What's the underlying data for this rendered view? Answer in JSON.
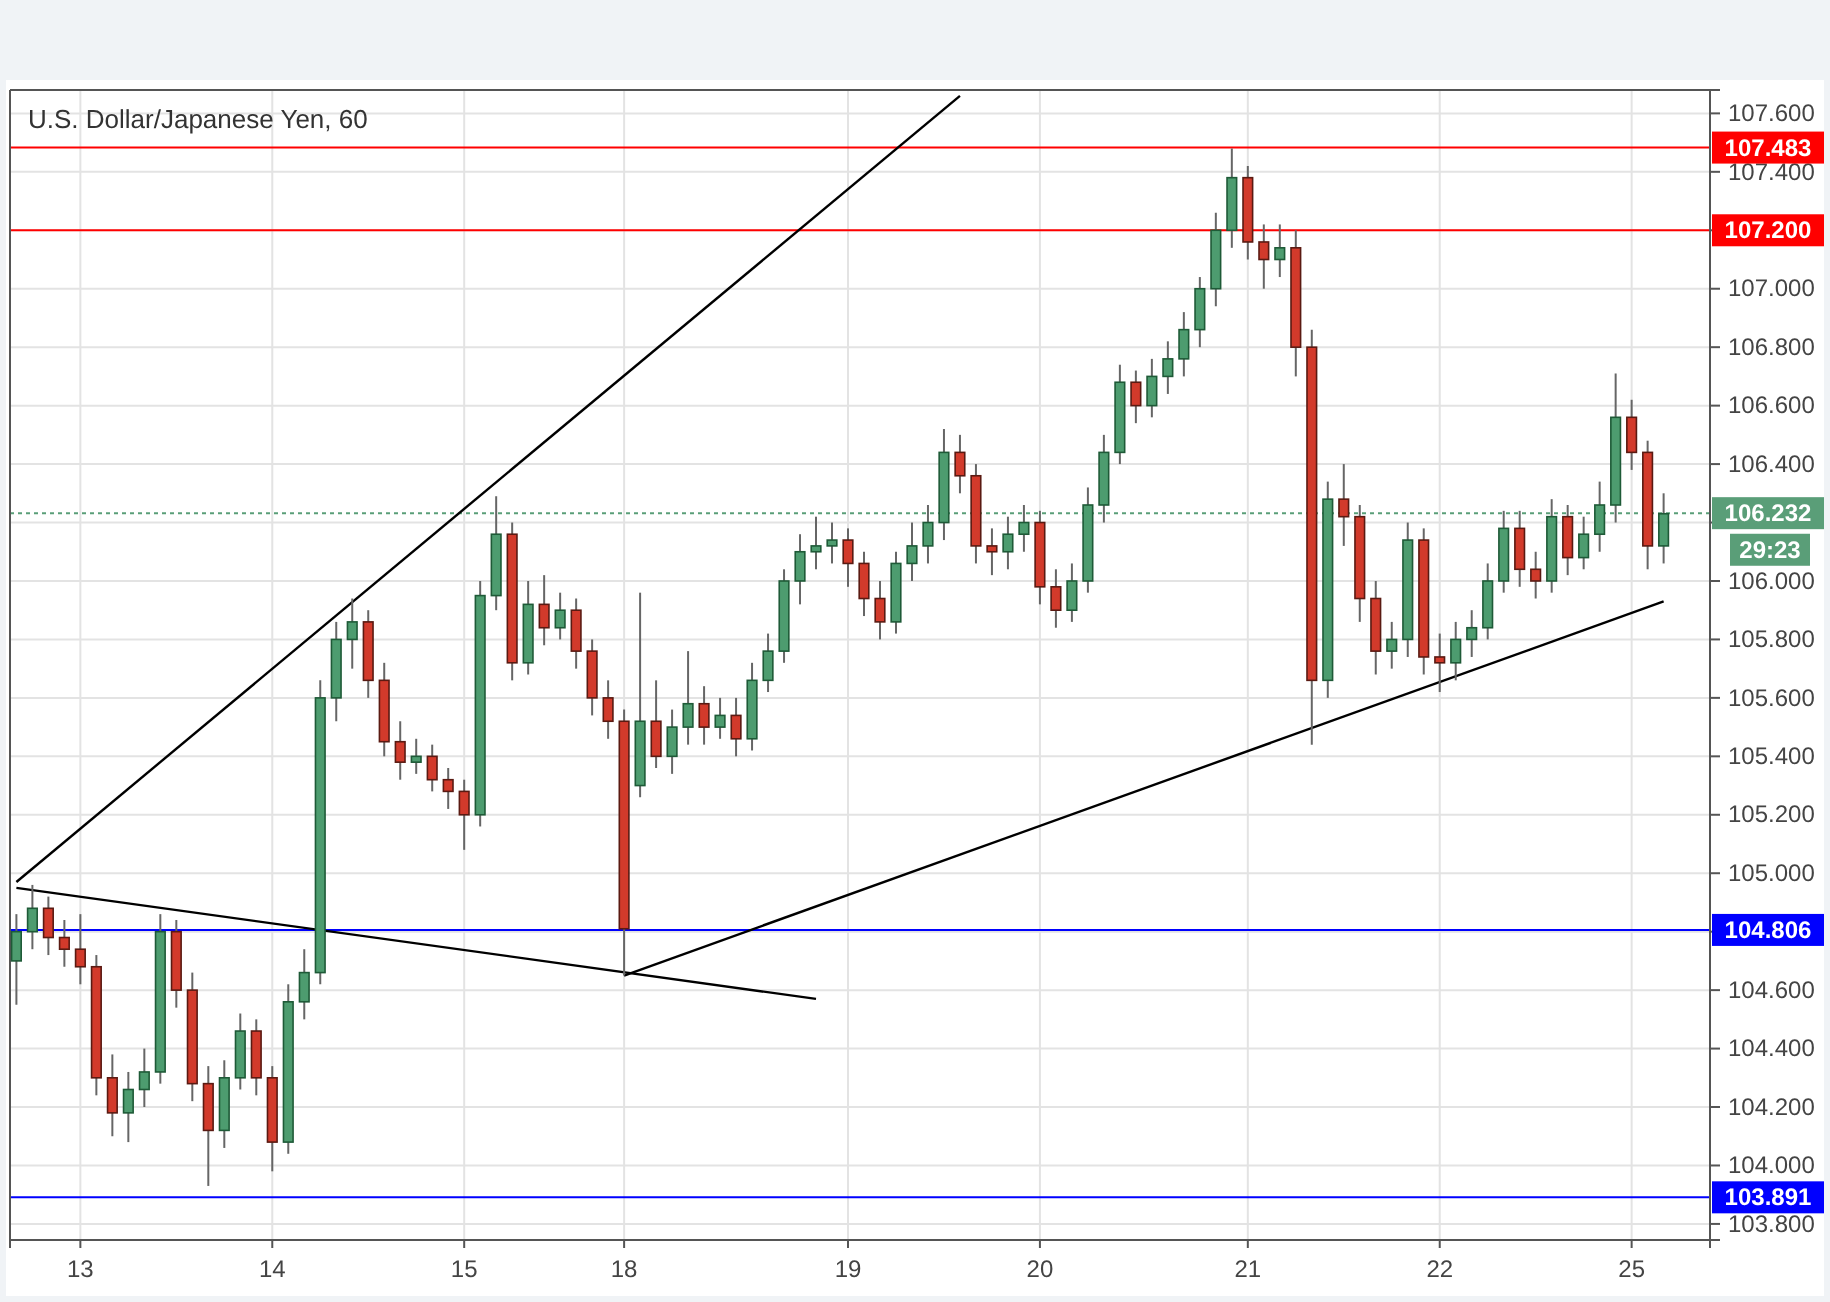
{
  "chart_data": {
    "type": "candlestick",
    "title": "U.S. Dollar/Japanese Yen, 60",
    "categories": [
      null,
      null,
      null,
      null,
      "13",
      null,
      null,
      null,
      null,
      null,
      null,
      null,
      null,
      null,
      null,
      null,
      "14",
      null,
      null,
      null,
      null,
      null,
      null,
      null,
      null,
      null,
      null,
      null,
      "15",
      null,
      null,
      null,
      null,
      null,
      null,
      null,
      null,
      null,
      "18",
      null,
      null,
      null,
      null,
      null,
      null,
      null,
      null,
      null,
      null,
      null,
      null,
      null,
      "19",
      null,
      null,
      null,
      null,
      null,
      null,
      null,
      null,
      null,
      null,
      null,
      "20",
      null,
      null,
      null,
      null,
      null,
      null,
      null,
      null,
      null,
      null,
      null,
      null,
      "21",
      null,
      null,
      null,
      null,
      null,
      null,
      null,
      null,
      null,
      null,
      null,
      "22",
      null,
      null,
      null,
      null,
      null,
      null,
      null,
      null,
      null,
      null,
      null,
      "25",
      null,
      null
    ],
    "ohlc": [
      [
        104.7,
        104.86,
        104.55,
        104.8
      ],
      [
        104.8,
        104.96,
        104.74,
        104.88
      ],
      [
        104.88,
        104.92,
        104.72,
        104.78
      ],
      [
        104.78,
        104.84,
        104.68,
        104.74
      ],
      [
        104.74,
        104.86,
        104.62,
        104.68
      ],
      [
        104.68,
        104.72,
        104.24,
        104.3
      ],
      [
        104.3,
        104.38,
        104.1,
        104.18
      ],
      [
        104.18,
        104.32,
        104.08,
        104.26
      ],
      [
        104.26,
        104.4,
        104.2,
        104.32
      ],
      [
        104.32,
        104.86,
        104.28,
        104.8
      ],
      [
        104.8,
        104.84,
        104.54,
        104.6
      ],
      [
        104.6,
        104.66,
        104.22,
        104.28
      ],
      [
        104.28,
        104.34,
        103.93,
        104.12
      ],
      [
        104.12,
        104.36,
        104.06,
        104.3
      ],
      [
        104.3,
        104.52,
        104.26,
        104.46
      ],
      [
        104.46,
        104.5,
        104.24,
        104.3
      ],
      [
        104.3,
        104.34,
        103.98,
        104.08
      ],
      [
        104.08,
        104.62,
        104.04,
        104.56
      ],
      [
        104.56,
        104.74,
        104.5,
        104.66
      ],
      [
        104.66,
        105.66,
        104.62,
        105.6
      ],
      [
        105.6,
        105.86,
        105.52,
        105.8
      ],
      [
        105.8,
        105.94,
        105.7,
        105.86
      ],
      [
        105.86,
        105.9,
        105.6,
        105.66
      ],
      [
        105.66,
        105.72,
        105.4,
        105.45
      ],
      [
        105.45,
        105.52,
        105.32,
        105.38
      ],
      [
        105.38,
        105.46,
        105.34,
        105.4
      ],
      [
        105.4,
        105.44,
        105.28,
        105.32
      ],
      [
        105.32,
        105.36,
        105.22,
        105.28
      ],
      [
        105.28,
        105.32,
        105.08,
        105.2
      ],
      [
        105.2,
        106.0,
        105.16,
        105.95
      ],
      [
        105.95,
        106.29,
        105.9,
        106.16
      ],
      [
        106.16,
        106.2,
        105.66,
        105.72
      ],
      [
        105.72,
        106.0,
        105.68,
        105.92
      ],
      [
        105.92,
        106.02,
        105.78,
        105.84
      ],
      [
        105.84,
        105.96,
        105.8,
        105.9
      ],
      [
        105.9,
        105.94,
        105.7,
        105.76
      ],
      [
        105.76,
        105.8,
        105.54,
        105.6
      ],
      [
        105.6,
        105.66,
        105.46,
        105.52
      ],
      [
        105.52,
        105.56,
        104.65,
        104.81
      ],
      [
        105.3,
        105.96,
        105.26,
        105.52
      ],
      [
        105.52,
        105.66,
        105.36,
        105.4
      ],
      [
        105.4,
        105.56,
        105.34,
        105.5
      ],
      [
        105.5,
        105.76,
        105.44,
        105.58
      ],
      [
        105.58,
        105.64,
        105.44,
        105.5
      ],
      [
        105.5,
        105.6,
        105.46,
        105.54
      ],
      [
        105.54,
        105.6,
        105.4,
        105.46
      ],
      [
        105.46,
        105.72,
        105.42,
        105.66
      ],
      [
        105.66,
        105.82,
        105.62,
        105.76
      ],
      [
        105.76,
        106.04,
        105.72,
        106.0
      ],
      [
        106.0,
        106.16,
        105.92,
        106.1
      ],
      [
        106.1,
        106.22,
        106.04,
        106.12
      ],
      [
        106.12,
        106.2,
        106.06,
        106.14
      ],
      [
        106.14,
        106.18,
        105.98,
        106.06
      ],
      [
        106.06,
        106.1,
        105.88,
        105.94
      ],
      [
        105.94,
        106.0,
        105.8,
        105.86
      ],
      [
        105.86,
        106.1,
        105.82,
        106.06
      ],
      [
        106.06,
        106.2,
        106.0,
        106.12
      ],
      [
        106.12,
        106.26,
        106.06,
        106.2
      ],
      [
        106.2,
        106.52,
        106.14,
        106.44
      ],
      [
        106.44,
        106.5,
        106.3,
        106.36
      ],
      [
        106.36,
        106.4,
        106.06,
        106.12
      ],
      [
        106.12,
        106.18,
        106.02,
        106.1
      ],
      [
        106.1,
        106.22,
        106.04,
        106.16
      ],
      [
        106.16,
        106.26,
        106.1,
        106.2
      ],
      [
        106.2,
        106.24,
        105.92,
        105.98
      ],
      [
        105.98,
        106.04,
        105.84,
        105.9
      ],
      [
        105.9,
        106.06,
        105.86,
        106.0
      ],
      [
        106.0,
        106.32,
        105.96,
        106.26
      ],
      [
        106.26,
        106.5,
        106.2,
        106.44
      ],
      [
        106.44,
        106.74,
        106.4,
        106.68
      ],
      [
        106.68,
        106.72,
        106.54,
        106.6
      ],
      [
        106.6,
        106.76,
        106.56,
        106.7
      ],
      [
        106.7,
        106.82,
        106.64,
        106.76
      ],
      [
        106.76,
        106.92,
        106.7,
        106.86
      ],
      [
        106.86,
        107.04,
        106.8,
        107.0
      ],
      [
        107.0,
        107.26,
        106.94,
        107.2
      ],
      [
        107.2,
        107.48,
        107.14,
        107.38
      ],
      [
        107.38,
        107.42,
        107.1,
        107.16
      ],
      [
        107.16,
        107.22,
        107.0,
        107.1
      ],
      [
        107.1,
        107.22,
        107.04,
        107.14
      ],
      [
        107.14,
        107.2,
        106.7,
        106.8
      ],
      [
        106.8,
        106.86,
        105.44,
        105.66
      ],
      [
        105.66,
        106.34,
        105.6,
        106.28
      ],
      [
        106.28,
        106.4,
        106.12,
        106.22
      ],
      [
        106.22,
        106.26,
        105.86,
        105.94
      ],
      [
        105.94,
        106.0,
        105.68,
        105.76
      ],
      [
        105.76,
        105.86,
        105.7,
        105.8
      ],
      [
        105.8,
        106.2,
        105.74,
        106.14
      ],
      [
        106.14,
        106.18,
        105.68,
        105.74
      ],
      [
        105.74,
        105.82,
        105.62,
        105.72
      ],
      [
        105.72,
        105.86,
        105.66,
        105.8
      ],
      [
        105.8,
        105.9,
        105.74,
        105.84
      ],
      [
        105.84,
        106.06,
        105.8,
        106.0
      ],
      [
        106.0,
        106.24,
        105.96,
        106.18
      ],
      [
        106.18,
        106.24,
        105.98,
        106.04
      ],
      [
        106.04,
        106.1,
        105.94,
        106.0
      ],
      [
        106.0,
        106.28,
        105.96,
        106.22
      ],
      [
        106.22,
        106.26,
        106.02,
        106.08
      ],
      [
        106.08,
        106.22,
        106.04,
        106.16
      ],
      [
        106.16,
        106.34,
        106.1,
        106.26
      ],
      [
        106.26,
        106.71,
        106.2,
        106.56
      ],
      [
        106.56,
        106.62,
        106.38,
        106.44
      ],
      [
        106.44,
        106.48,
        106.04,
        106.12
      ],
      [
        106.12,
        106.3,
        106.06,
        106.23
      ]
    ],
    "series": [
      {
        "type": "line",
        "color": "#000000",
        "values": [
          104.97,
          null,
          null,
          null,
          null,
          null,
          null,
          null,
          null,
          null,
          null,
          null,
          null,
          null,
          null,
          null,
          null,
          null,
          null,
          null,
          null,
          null,
          null,
          null,
          null,
          null,
          null,
          null,
          null,
          null,
          null,
          null,
          null,
          null,
          null,
          null,
          null,
          null,
          null,
          null,
          null,
          null,
          null,
          null,
          null,
          null,
          null,
          null,
          null,
          null,
          null,
          null,
          null,
          null,
          null,
          null,
          null,
          null,
          null,
          107.66,
          null,
          null,
          null,
          null,
          null,
          null,
          null,
          null,
          null,
          null,
          null,
          null,
          null,
          null,
          null,
          null,
          null,
          null,
          null,
          null,
          null,
          null,
          null,
          null,
          null,
          null,
          null,
          null,
          null,
          null,
          null,
          null,
          null,
          null,
          null,
          null,
          null,
          null,
          null,
          null,
          null,
          null,
          null,
          null
        ]
      },
      {
        "type": "line",
        "color": "#000000",
        "values": [
          104.95,
          null,
          null,
          null,
          null,
          null,
          null,
          null,
          null,
          null,
          null,
          null,
          null,
          null,
          null,
          null,
          null,
          null,
          null,
          null,
          null,
          null,
          null,
          null,
          null,
          null,
          null,
          null,
          null,
          null,
          null,
          null,
          null,
          null,
          null,
          null,
          null,
          null,
          null,
          null,
          null,
          null,
          null,
          null,
          null,
          null,
          null,
          null,
          null,
          null,
          104.57,
          null,
          null,
          null,
          null,
          null,
          null,
          null,
          null,
          null,
          null,
          null,
          null,
          null,
          null,
          null,
          null,
          null,
          null,
          null,
          null,
          null,
          null,
          null,
          null,
          null,
          null,
          null,
          null,
          null,
          null,
          null,
          null,
          null,
          null,
          null,
          null,
          null,
          null,
          null,
          null,
          null,
          null,
          null,
          null,
          null,
          null,
          null,
          null,
          null,
          null,
          null,
          null,
          null
        ]
      },
      {
        "type": "line",
        "color": "#000000",
        "values": [
          null,
          null,
          null,
          null,
          null,
          null,
          null,
          null,
          null,
          null,
          null,
          null,
          null,
          null,
          null,
          null,
          null,
          null,
          null,
          null,
          null,
          null,
          null,
          null,
          null,
          null,
          null,
          null,
          null,
          null,
          null,
          null,
          null,
          null,
          null,
          null,
          null,
          null,
          104.65,
          null,
          null,
          null,
          null,
          null,
          null,
          null,
          null,
          null,
          null,
          null,
          null,
          null,
          null,
          null,
          null,
          null,
          null,
          null,
          null,
          null,
          null,
          null,
          null,
          null,
          null,
          null,
          null,
          null,
          null,
          null,
          null,
          null,
          null,
          null,
          null,
          null,
          null,
          null,
          null,
          null,
          null,
          null,
          null,
          null,
          null,
          null,
          null,
          null,
          null,
          null,
          null,
          null,
          null,
          null,
          null,
          null,
          null,
          null,
          null,
          null,
          null,
          null,
          null,
          105.93
        ]
      }
    ],
    "ylim": [
      103.745,
      107.68
    ],
    "yticks": [
      {
        "value": 103.8,
        "label": "103.800"
      },
      {
        "value": 104.0,
        "label": "104.000"
      },
      {
        "value": 104.2,
        "label": "104.200"
      },
      {
        "value": 104.4,
        "label": "104.400"
      },
      {
        "value": 104.6,
        "label": "104.600"
      },
      {
        "value": 104.8,
        "label": null
      },
      {
        "value": 105.0,
        "label": "105.000"
      },
      {
        "value": 105.2,
        "label": "105.200"
      },
      {
        "value": 105.4,
        "label": "105.400"
      },
      {
        "value": 105.6,
        "label": "105.600"
      },
      {
        "value": 105.8,
        "label": "105.800"
      },
      {
        "value": 106.0,
        "label": "106.000"
      },
      {
        "value": 106.2,
        "label": null
      },
      {
        "value": 106.4,
        "label": "106.400"
      },
      {
        "value": 106.6,
        "label": "106.600"
      },
      {
        "value": 106.8,
        "label": "106.800"
      },
      {
        "value": 107.0,
        "label": "107.000"
      },
      {
        "value": 107.2,
        "label": null
      },
      {
        "value": 107.4,
        "label": "107.400"
      },
      {
        "value": 107.6,
        "label": "107.600"
      }
    ],
    "grid": true,
    "ref_lines": [
      {
        "axis": "y",
        "value": 107.483,
        "label": "107.483",
        "color": "#ff0000"
      },
      {
        "axis": "y",
        "value": 107.2,
        "label": "107.200",
        "color": "#ff0000"
      },
      {
        "axis": "y",
        "value": 106.232,
        "label": "106.232",
        "color": "#5a9e78",
        "line_style": "dotted"
      },
      {
        "axis": "y",
        "value": 104.806,
        "label": "104.806",
        "color": "#0000ff"
      },
      {
        "axis": "y",
        "value": 103.891,
        "label": "103.891",
        "color": "#0000ff"
      }
    ],
    "annotations": [
      "29:23"
    ]
  }
}
